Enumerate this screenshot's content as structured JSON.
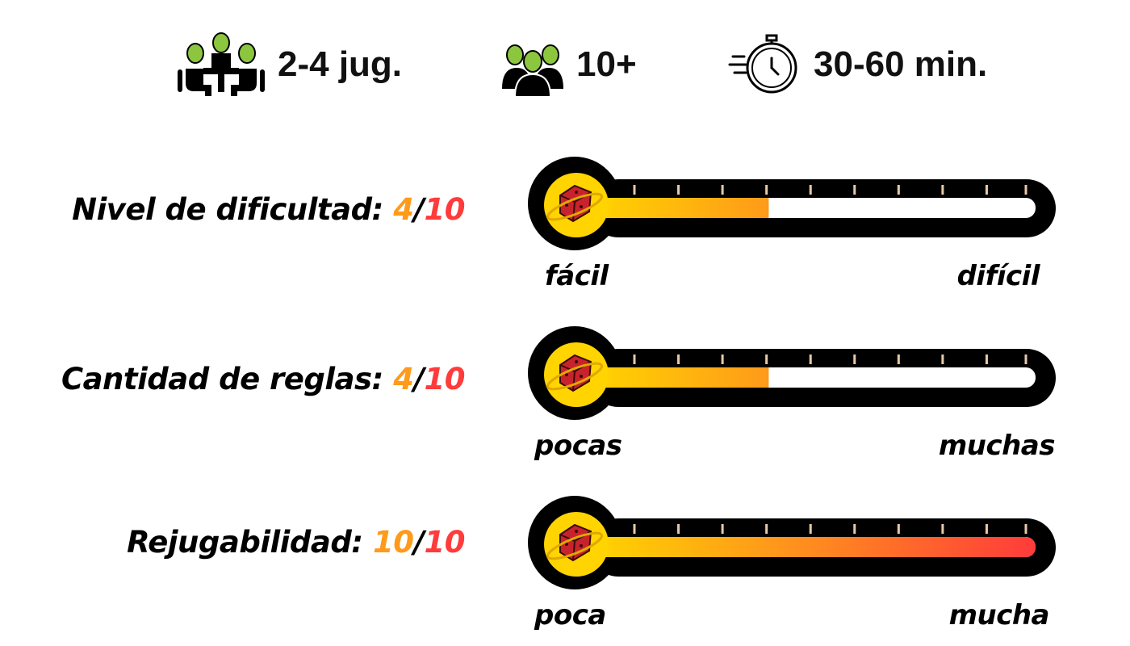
{
  "header": {
    "players": {
      "text": "2-4 jug.",
      "icon": "players-at-table-icon"
    },
    "age": {
      "text": "10+",
      "icon": "alien-group-icon"
    },
    "time": {
      "text": "30-60 min.",
      "icon": "stopwatch-icon"
    }
  },
  "colors": {
    "fill_start": "#ffd400",
    "fill_mid": "#ff9a1a",
    "fill_end": "#ff3b3b",
    "alien_green": "#8cc63f",
    "tick": "#e6c9a8"
  },
  "ratings": [
    {
      "label": "Nivel de dificultad: ",
      "value": "4",
      "sep": "/",
      "max": "10",
      "fraction": 0.4,
      "min_label": "fácil",
      "max_label": "difícil"
    },
    {
      "label": "Cantidad de reglas: ",
      "value": "4",
      "sep": "/",
      "max": "10",
      "fraction": 0.4,
      "min_label": "pocas",
      "max_label": "muchas"
    },
    {
      "label": "Rejugabilidad: ",
      "value": "10",
      "sep": "/",
      "max": "10",
      "fraction": 1.0,
      "min_label": "poca",
      "max_label": "mucha"
    }
  ]
}
